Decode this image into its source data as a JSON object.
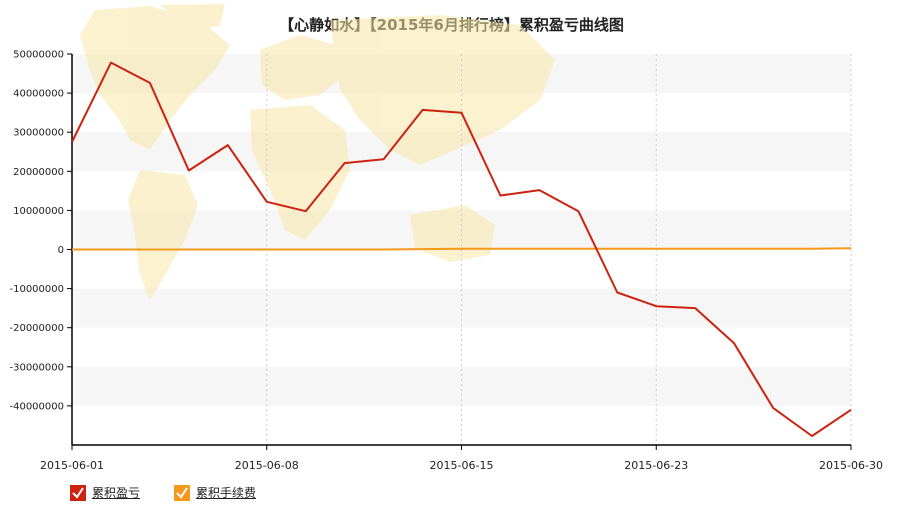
{
  "chart_data": {
    "type": "line",
    "title": "【心静如水】【2015年6月排行榜】累积盈亏曲线图",
    "x_tick_labels": [
      "2015-06-01",
      "2015-06-08",
      "2015-06-15",
      "2015-06-23",
      "2015-06-30"
    ],
    "y_ticks": [
      50000000,
      40000000,
      30000000,
      20000000,
      10000000,
      0,
      -10000000,
      -20000000,
      -30000000,
      -40000000
    ],
    "ylim": [
      -50000000,
      50000000
    ],
    "series": [
      {
        "name": "累积盈亏",
        "color": "#cc2211",
        "values": [
          27500000,
          47800000,
          42600000,
          20200000,
          26700000,
          12200000,
          9800000,
          22100000,
          23100000,
          35700000,
          35000000,
          13800000,
          15200000,
          9800000,
          -11000000,
          -14500000,
          -15000000,
          -24000000,
          -40500000,
          -47700000,
          -41000000
        ]
      },
      {
        "name": "累积手续费",
        "color": "#f39a1c",
        "values": [
          0,
          0,
          0,
          0,
          0,
          0,
          0,
          0,
          0,
          100000,
          200000,
          200000,
          200000,
          200000,
          200000,
          200000,
          200000,
          200000,
          200000,
          200000,
          300000
        ]
      }
    ],
    "grid": true,
    "legend_position": "bottom-left",
    "plot_background": "world-map watermark"
  }
}
